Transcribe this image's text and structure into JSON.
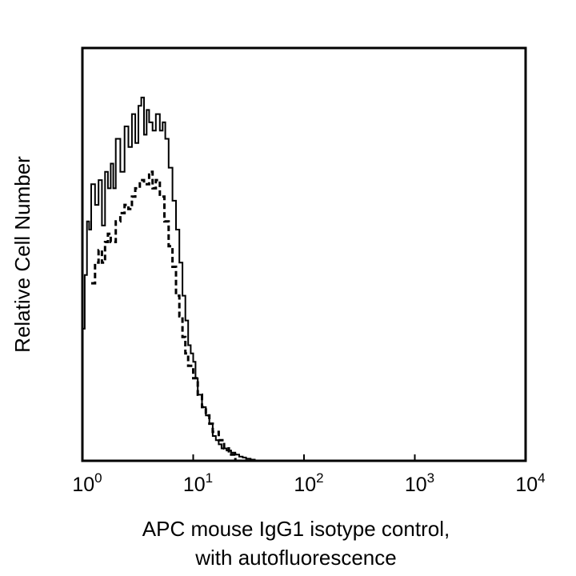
{
  "chart_data": {
    "type": "line",
    "title": "",
    "xlabel_lines": [
      "APC mouse IgG1 isotype control,",
      "with autofluorescence"
    ],
    "ylabel": "Relative Cell Number",
    "x_scale": "log",
    "xlim": [
      1,
      10000
    ],
    "ylim": [
      0,
      100
    ],
    "y_ticks_shown": false,
    "grid": false,
    "legend": "none",
    "x_ticks": [
      {
        "base": "10",
        "exp": "0",
        "value": 1
      },
      {
        "base": "10",
        "exp": "1",
        "value": 10
      },
      {
        "base": "10",
        "exp": "2",
        "value": 100
      },
      {
        "base": "10",
        "exp": "3",
        "value": 1000
      },
      {
        "base": "10",
        "exp": "4",
        "value": 10000
      }
    ],
    "series": [
      {
        "style": "solid",
        "color": "#000000",
        "x": [
          1.0,
          1.05,
          1.1,
          1.15,
          1.2,
          1.3,
          1.4,
          1.5,
          1.6,
          1.7,
          1.8,
          1.9,
          2.0,
          2.2,
          2.4,
          2.6,
          2.8,
          3.0,
          3.2,
          3.4,
          3.6,
          3.8,
          4.0,
          4.3,
          4.6,
          5.0,
          5.3,
          5.6,
          6.0,
          6.5,
          7.0,
          7.5,
          8.0,
          8.5,
          9.0,
          9.5,
          10.0,
          10.5,
          11.0,
          12.0,
          13.0,
          14.0,
          15.0,
          16.0,
          17.0,
          18.0,
          20.0,
          22.0,
          24.0,
          26.0,
          28.0,
          30.0,
          33.0,
          36.0
        ],
        "y": [
          32,
          45,
          58,
          56,
          67,
          62,
          68,
          57,
          70,
          66,
          72,
          66,
          78,
          70,
          81,
          76,
          84,
          77,
          86,
          88,
          79,
          85,
          82,
          80,
          84,
          80,
          82,
          78,
          71,
          63,
          56,
          48,
          40,
          34,
          28,
          26,
          24,
          20,
          16,
          13,
          11,
          9,
          6,
          5,
          4,
          3,
          2.5,
          2,
          1.5,
          1,
          0.8,
          0.5,
          0.3,
          0
        ]
      },
      {
        "style": "dashed",
        "color": "#000000",
        "x": [
          1.2,
          1.3,
          1.4,
          1.5,
          1.6,
          1.7,
          1.8,
          2.0,
          2.2,
          2.4,
          2.6,
          2.8,
          3.0,
          3.3,
          3.6,
          4.0,
          4.3,
          4.6,
          5.0,
          5.5,
          6.0,
          6.5,
          7.0,
          7.5,
          8.0,
          8.5,
          9.0,
          10.0,
          11.0,
          12.0,
          13.0,
          14.0,
          15.0,
          17.0,
          19.0,
          21.0,
          24.0
        ],
        "y": [
          43,
          48,
          51,
          48,
          53,
          55,
          53,
          58,
          60,
          62,
          61,
          64,
          66,
          68,
          67,
          70,
          66,
          68,
          64,
          58,
          52,
          47,
          40,
          35,
          30,
          26,
          23,
          20,
          16,
          13,
          11,
          9,
          7,
          5,
          3,
          1.5,
          0
        ]
      }
    ]
  }
}
